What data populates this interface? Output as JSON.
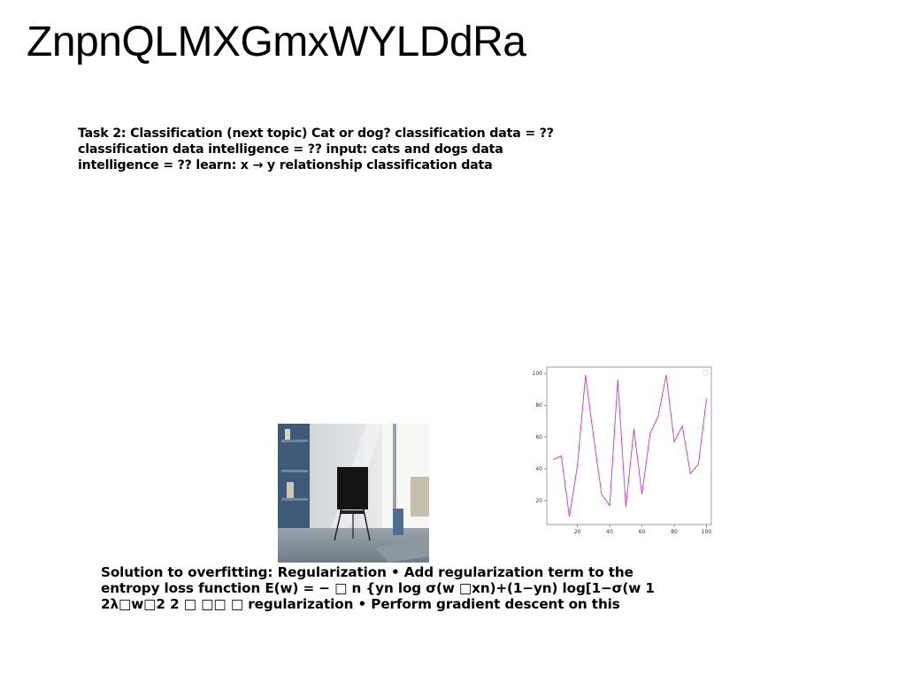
{
  "slide": {
    "title": "ZnpnQLMXGmxWYLDdRa",
    "text_top": "Task 2: Classification (next topic) Cat or dog? classification data = ?? classification data intelligence = ?? input: cats and dogs data intelligence = ?? learn: x → y relationship classification data",
    "text_bottom": "Solution to overfitting: Regularization • Add regularization term to the entropy loss function E(w) = − □ n {yn log σ(w □xn)+(1−yn) log[1−σ(w 1 2λ□w□2 2 □ □□ □ regularization • Perform gradient descent on this"
  },
  "chart_data": {
    "type": "line",
    "x": [
      5,
      10,
      15,
      20,
      25,
      30,
      35,
      40,
      45,
      50,
      55,
      60,
      65,
      70,
      75,
      80,
      85,
      90,
      95,
      100
    ],
    "series": [
      {
        "values": [
          46,
          48,
          10,
          42,
          99,
          60,
          24,
          17,
          96,
          16,
          65,
          24,
          62,
          73,
          99,
          57,
          67,
          37,
          43,
          84
        ],
        "color": "#cc33cc"
      }
    ],
    "xticks": [
      20,
      40,
      60,
      80,
      100
    ],
    "yticks": [
      20,
      40,
      60,
      80,
      100
    ],
    "xlim": [
      1,
      103
    ],
    "ylim": [
      5,
      104
    ],
    "grid": false
  }
}
